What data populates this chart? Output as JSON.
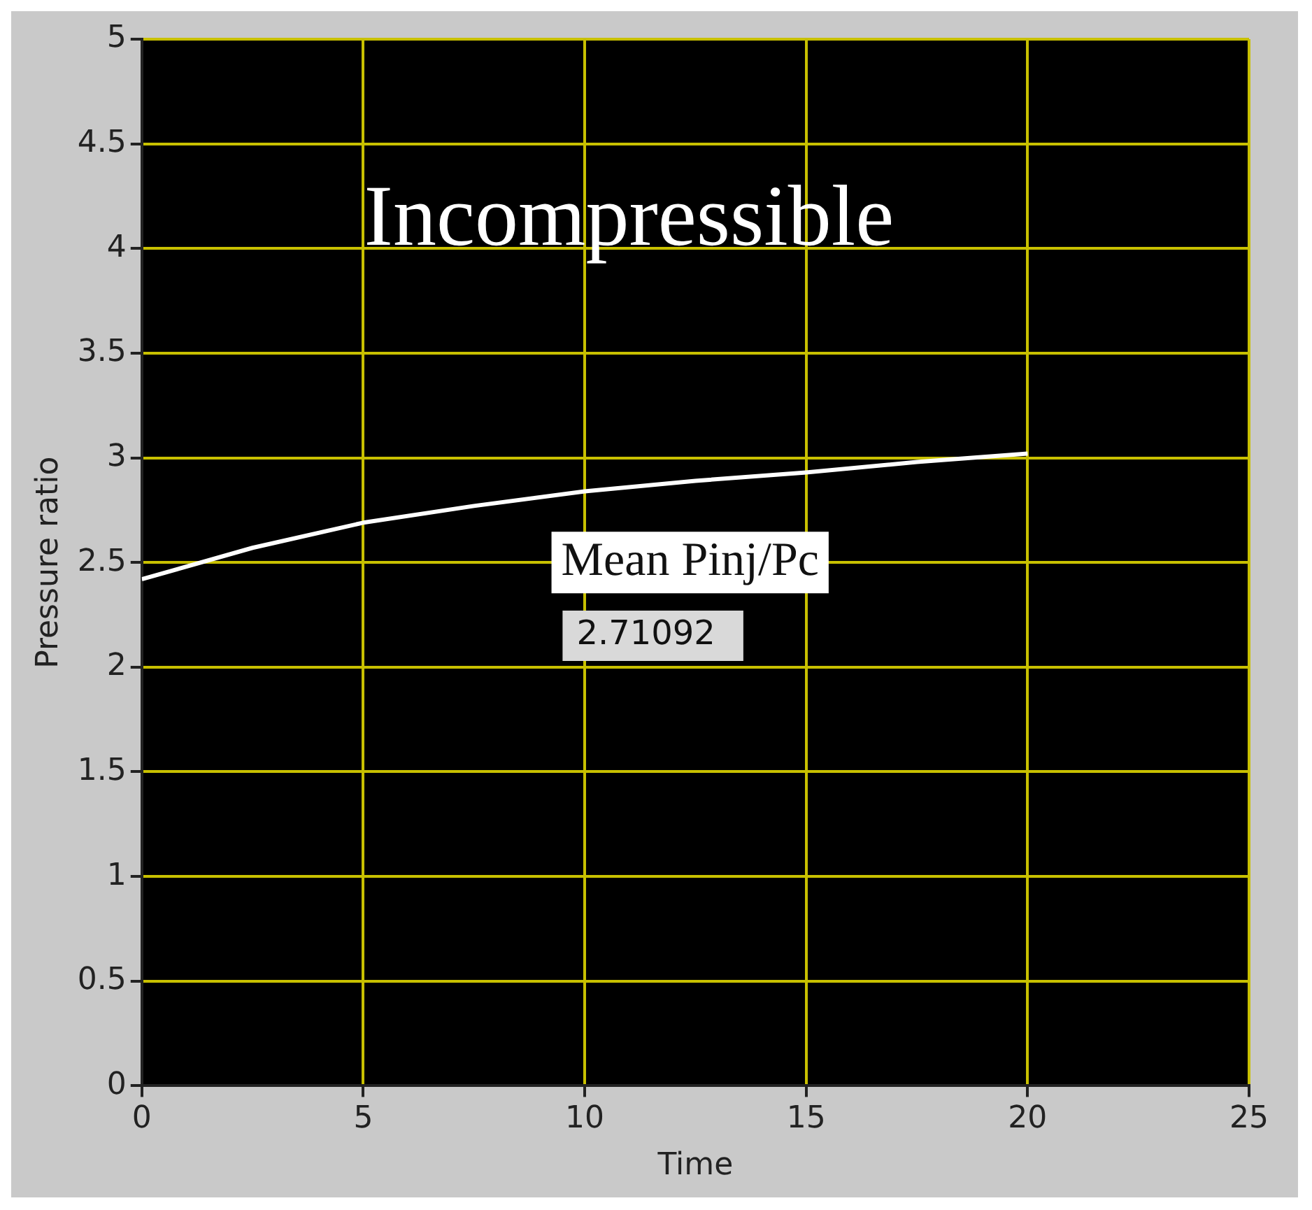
{
  "chart_data": {
    "type": "line",
    "xlabel": "Time",
    "ylabel": "Pressure ratio",
    "annotations": [
      "Incompressible",
      "Mean Pinj/Pc",
      "2.71092"
    ],
    "x": [
      0,
      2.5,
      5,
      7.5,
      10,
      12.5,
      15,
      17.5,
      20
    ],
    "series": [
      {
        "color": "#ffffff",
        "values": [
          2.42,
          2.57,
          2.69,
          2.77,
          2.84,
          2.89,
          2.93,
          2.98,
          3.02
        ]
      }
    ],
    "xlim": [
      0,
      25
    ],
    "xticks": [
      0,
      5,
      10,
      15,
      20,
      25
    ],
    "ylim": [
      0,
      5
    ],
    "yticks": [
      0,
      0.5,
      1,
      1.5,
      2,
      2.5,
      3,
      3.5,
      4,
      4.5,
      5
    ],
    "grid": true,
    "legend": false,
    "marker": "none",
    "line_style": "solid"
  }
}
